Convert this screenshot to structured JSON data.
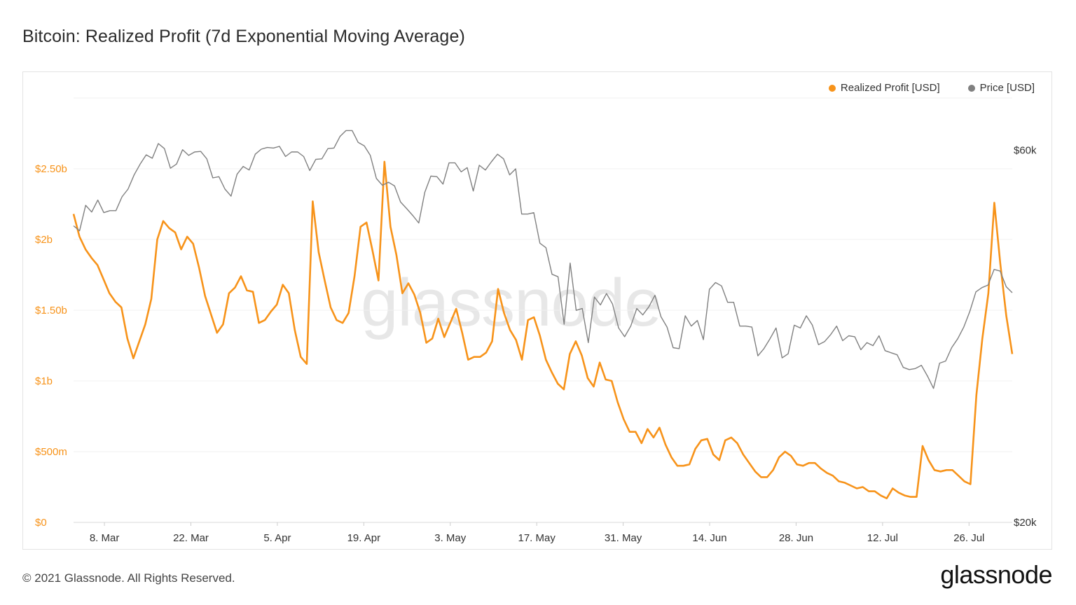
{
  "title": "Bitcoin: Realized Profit (7d Exponential Moving Average)",
  "footer": {
    "copyright": "© 2021 Glassnode. All Rights Reserved.",
    "logo": "glassnode"
  },
  "watermark": "glassnode",
  "legend": [
    {
      "label": "Realized Profit [USD]",
      "color": "#f7931a"
    },
    {
      "label": "Price [USD]",
      "color": "#808080"
    }
  ],
  "chart_data": {
    "type": "line",
    "x_range": [
      "2021-03-03",
      "2021-08-02"
    ],
    "x_ticks": [
      "8. Mar",
      "22. Mar",
      "5. Apr",
      "19. Apr",
      "3. May",
      "17. May",
      "31. May",
      "14. Jun",
      "28. Jun",
      "12. Jul",
      "26. Jul"
    ],
    "y_left": {
      "ticks": [
        "$0",
        "$500m",
        "$1b",
        "$1.50b",
        "$2b",
        "$2.50b"
      ],
      "range": [
        0,
        3000000000
      ],
      "color": "#f7931a"
    },
    "y_right": {
      "ticks": [
        "$20k",
        "$60k"
      ],
      "range": [
        20000,
        70000
      ],
      "log": true
    },
    "series": [
      {
        "name": "Realized Profit [USD]",
        "axis": "left",
        "color": "#f7931a",
        "values": [
          2.18,
          2.02,
          1.93,
          1.87,
          1.82,
          1.72,
          1.62,
          1.56,
          1.52,
          1.3,
          1.16,
          1.28,
          1.4,
          1.58,
          2.0,
          2.13,
          2.08,
          2.05,
          1.93,
          2.02,
          1.97,
          1.8,
          1.6,
          1.47,
          1.34,
          1.4,
          1.62,
          1.66,
          1.74,
          1.64,
          1.63,
          1.41,
          1.43,
          1.49,
          1.54,
          1.68,
          1.62,
          1.36,
          1.17,
          1.12,
          2.27,
          1.91,
          1.71,
          1.52,
          1.43,
          1.41,
          1.48,
          1.74,
          2.09,
          2.12,
          1.92,
          1.71,
          2.55,
          2.09,
          1.89,
          1.62,
          1.69,
          1.61,
          1.48,
          1.27,
          1.3,
          1.44,
          1.31,
          1.41,
          1.51,
          1.34,
          1.15,
          1.17,
          1.17,
          1.2,
          1.28,
          1.65,
          1.48,
          1.36,
          1.29,
          1.15,
          1.43,
          1.45,
          1.32,
          1.15,
          1.06,
          0.98,
          0.94,
          1.19,
          1.28,
          1.18,
          1.02,
          0.96,
          1.13,
          1.01,
          1.0,
          0.85,
          0.73,
          0.64,
          0.64,
          0.56,
          0.66,
          0.6,
          0.67,
          0.55,
          0.46,
          0.4,
          0.4,
          0.41,
          0.52,
          0.58,
          0.59,
          0.48,
          0.44,
          0.58,
          0.6,
          0.56,
          0.48,
          0.42,
          0.36,
          0.32,
          0.32,
          0.37,
          0.46,
          0.5,
          0.47,
          0.41,
          0.4,
          0.42,
          0.42,
          0.38,
          0.35,
          0.33,
          0.29,
          0.28,
          0.26,
          0.24,
          0.25,
          0.22,
          0.22,
          0.19,
          0.17,
          0.24,
          0.21,
          0.19,
          0.18,
          0.18,
          0.54,
          0.44,
          0.37,
          0.36,
          0.37,
          0.37,
          0.33,
          0.29,
          0.27,
          0.9,
          1.3,
          1.62,
          2.26,
          1.83,
          1.46,
          1.19
        ]
      },
      {
        "name": "Price [USD]",
        "axis": "right",
        "color": "#808080",
        "values": [
          48000,
          47300,
          51000,
          50000,
          51800,
          49900,
          50200,
          50200,
          52300,
          53500,
          55800,
          57600,
          59200,
          58600,
          61200,
          60300,
          56900,
          57600,
          60100,
          59100,
          59700,
          59800,
          58500,
          55300,
          55500,
          53500,
          52400,
          55900,
          57200,
          56600,
          59300,
          60200,
          60500,
          60400,
          60700,
          58900,
          59700,
          59700,
          58900,
          56500,
          58400,
          58500,
          60300,
          60400,
          62500,
          63600,
          63600,
          61400,
          60800,
          59100,
          55200,
          54100,
          54600,
          54000,
          51500,
          50500,
          49500,
          48400,
          53000,
          55600,
          55500,
          54300,
          57800,
          57800,
          56300,
          57000,
          53200,
          57400,
          56600,
          58000,
          59300,
          58500,
          55800,
          56800,
          49700,
          49700,
          49900,
          45600,
          45000,
          41600,
          41300,
          35900,
          43000,
          37400,
          37600,
          34000,
          38900,
          38000,
          39300,
          38100,
          35500,
          34600,
          35700,
          37600,
          36900,
          37800,
          39100,
          36700,
          35600,
          33500,
          33400,
          36800,
          35700,
          36300,
          34300,
          39800,
          40600,
          40200,
          38300,
          38300,
          35700,
          35700,
          35600,
          32700,
          33400,
          34400,
          35500,
          32500,
          32900,
          35800,
          35500,
          36800,
          35800,
          33800,
          34100,
          34800,
          35700,
          34200,
          34700,
          34600,
          33300,
          34000,
          33700,
          34700,
          33200,
          33000,
          32800,
          31600,
          31400,
          31500,
          31800,
          30800,
          29700,
          32000,
          32200,
          33500,
          34400,
          35600,
          37300,
          39500,
          40000,
          40300,
          42200,
          42000,
          40100,
          39400
        ]
      }
    ],
    "grid": true,
    "legend_position": "top-right"
  }
}
